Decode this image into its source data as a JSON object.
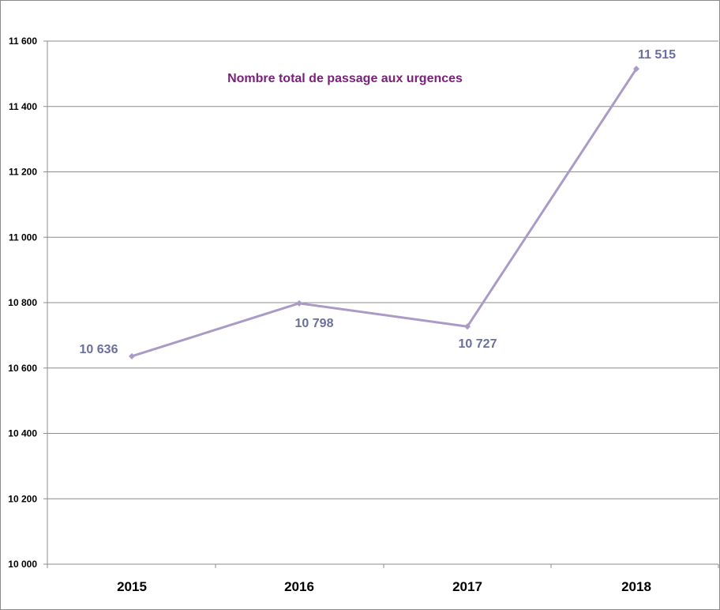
{
  "chart_data": {
    "type": "line",
    "title": "Nombre total de passage aux urgences",
    "categories": [
      "2015",
      "2016",
      "2017",
      "2018"
    ],
    "series": [
      {
        "values": [
          10636,
          10798,
          10727,
          11515
        ]
      }
    ],
    "data_labels": [
      "10 636",
      "10 798",
      "10 727",
      "11 515"
    ],
    "ylim": [
      10000,
      11600
    ],
    "yticks": [
      10000,
      10200,
      10400,
      10600,
      10800,
      11000,
      11200,
      11400,
      11600
    ],
    "ytick_labels": [
      "10 000",
      "10 200",
      "10 400",
      "10 600",
      "10 800",
      "11 000",
      "11 200",
      "11 400",
      "11 600"
    ],
    "xlabel": "",
    "ylabel": "",
    "grid": true,
    "legend": "none",
    "colors": {
      "line": "#a99bc6",
      "label": "#6b6fa0",
      "title": "#7a1f7a",
      "grid": "#8c8c8c"
    }
  }
}
